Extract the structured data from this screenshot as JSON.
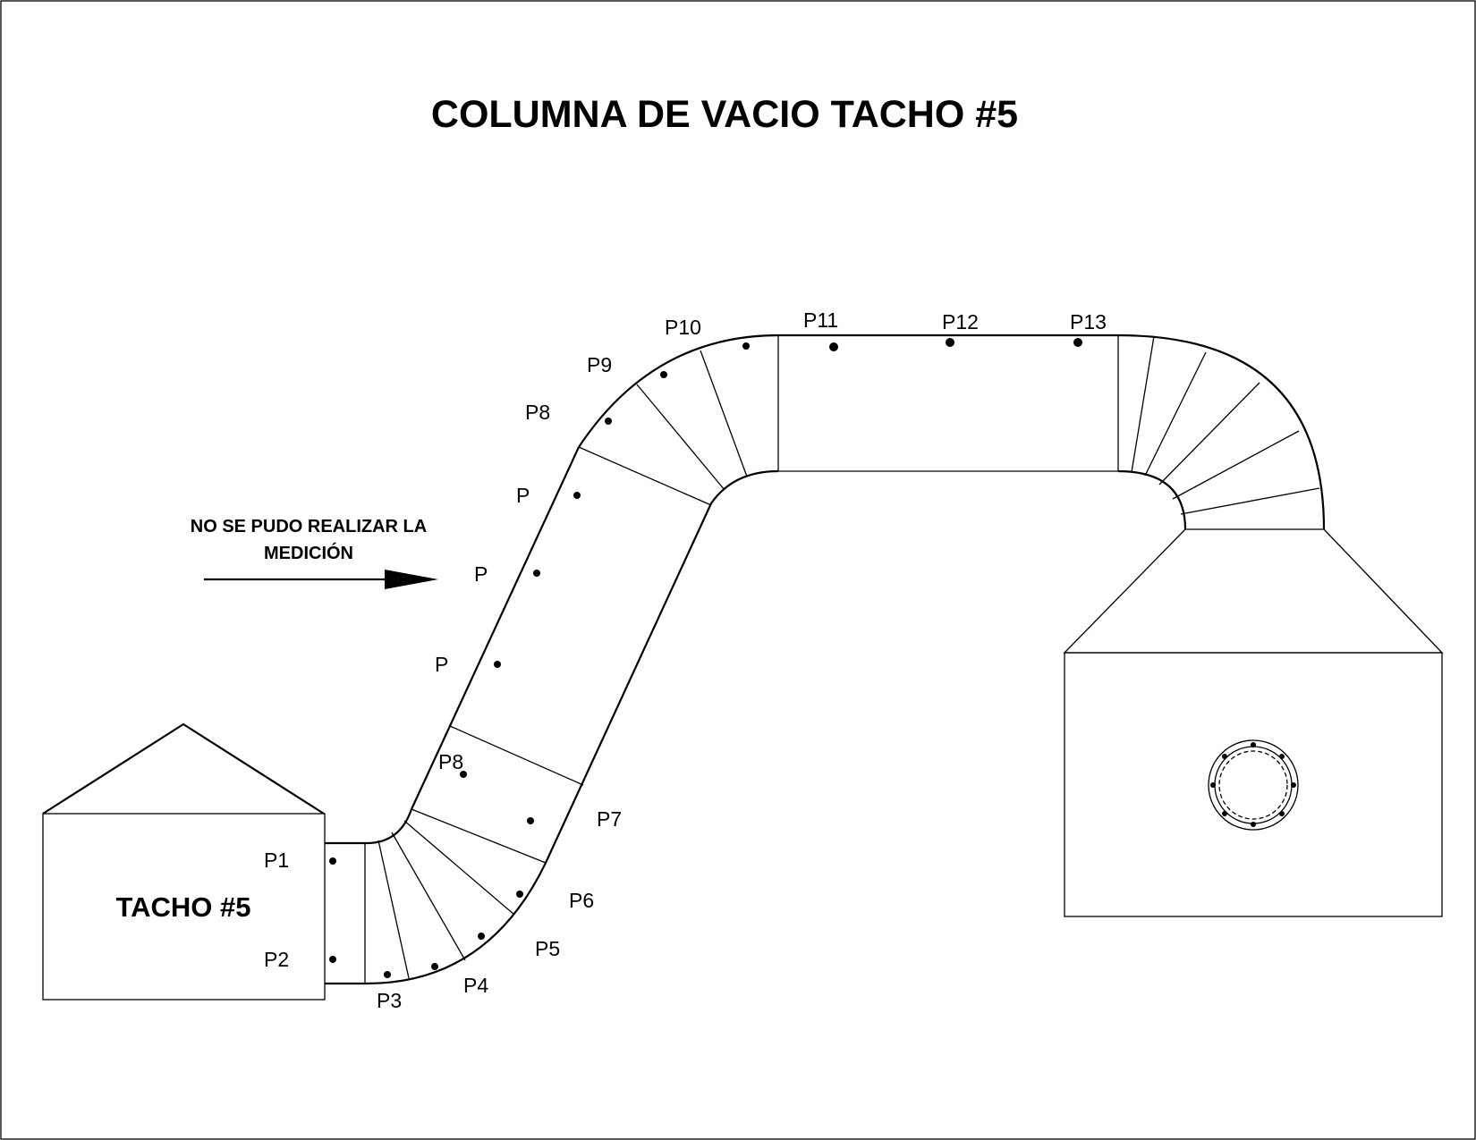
{
  "title": "COLUMNA DE VACIO TACHO #5",
  "tank_label": "TACHO #5",
  "note_line1": "NO SE PUDO REALIZAR LA",
  "note_line2": "MEDICIÓN",
  "points": {
    "p1": "P1",
    "p2": "P2",
    "p3": "P3",
    "p4": "P4",
    "p5": "P5",
    "p6": "P6",
    "p7": "P7",
    "p8_lower": "P8",
    "p_a": "P",
    "p_b": "P",
    "p_c": "P",
    "p8_upper": "P8",
    "p9": "P9",
    "p10": "P10",
    "p11": "P11",
    "p12": "P12",
    "p13": "P13"
  },
  "colors": {
    "line": "#000000",
    "background": "#ffffff"
  }
}
